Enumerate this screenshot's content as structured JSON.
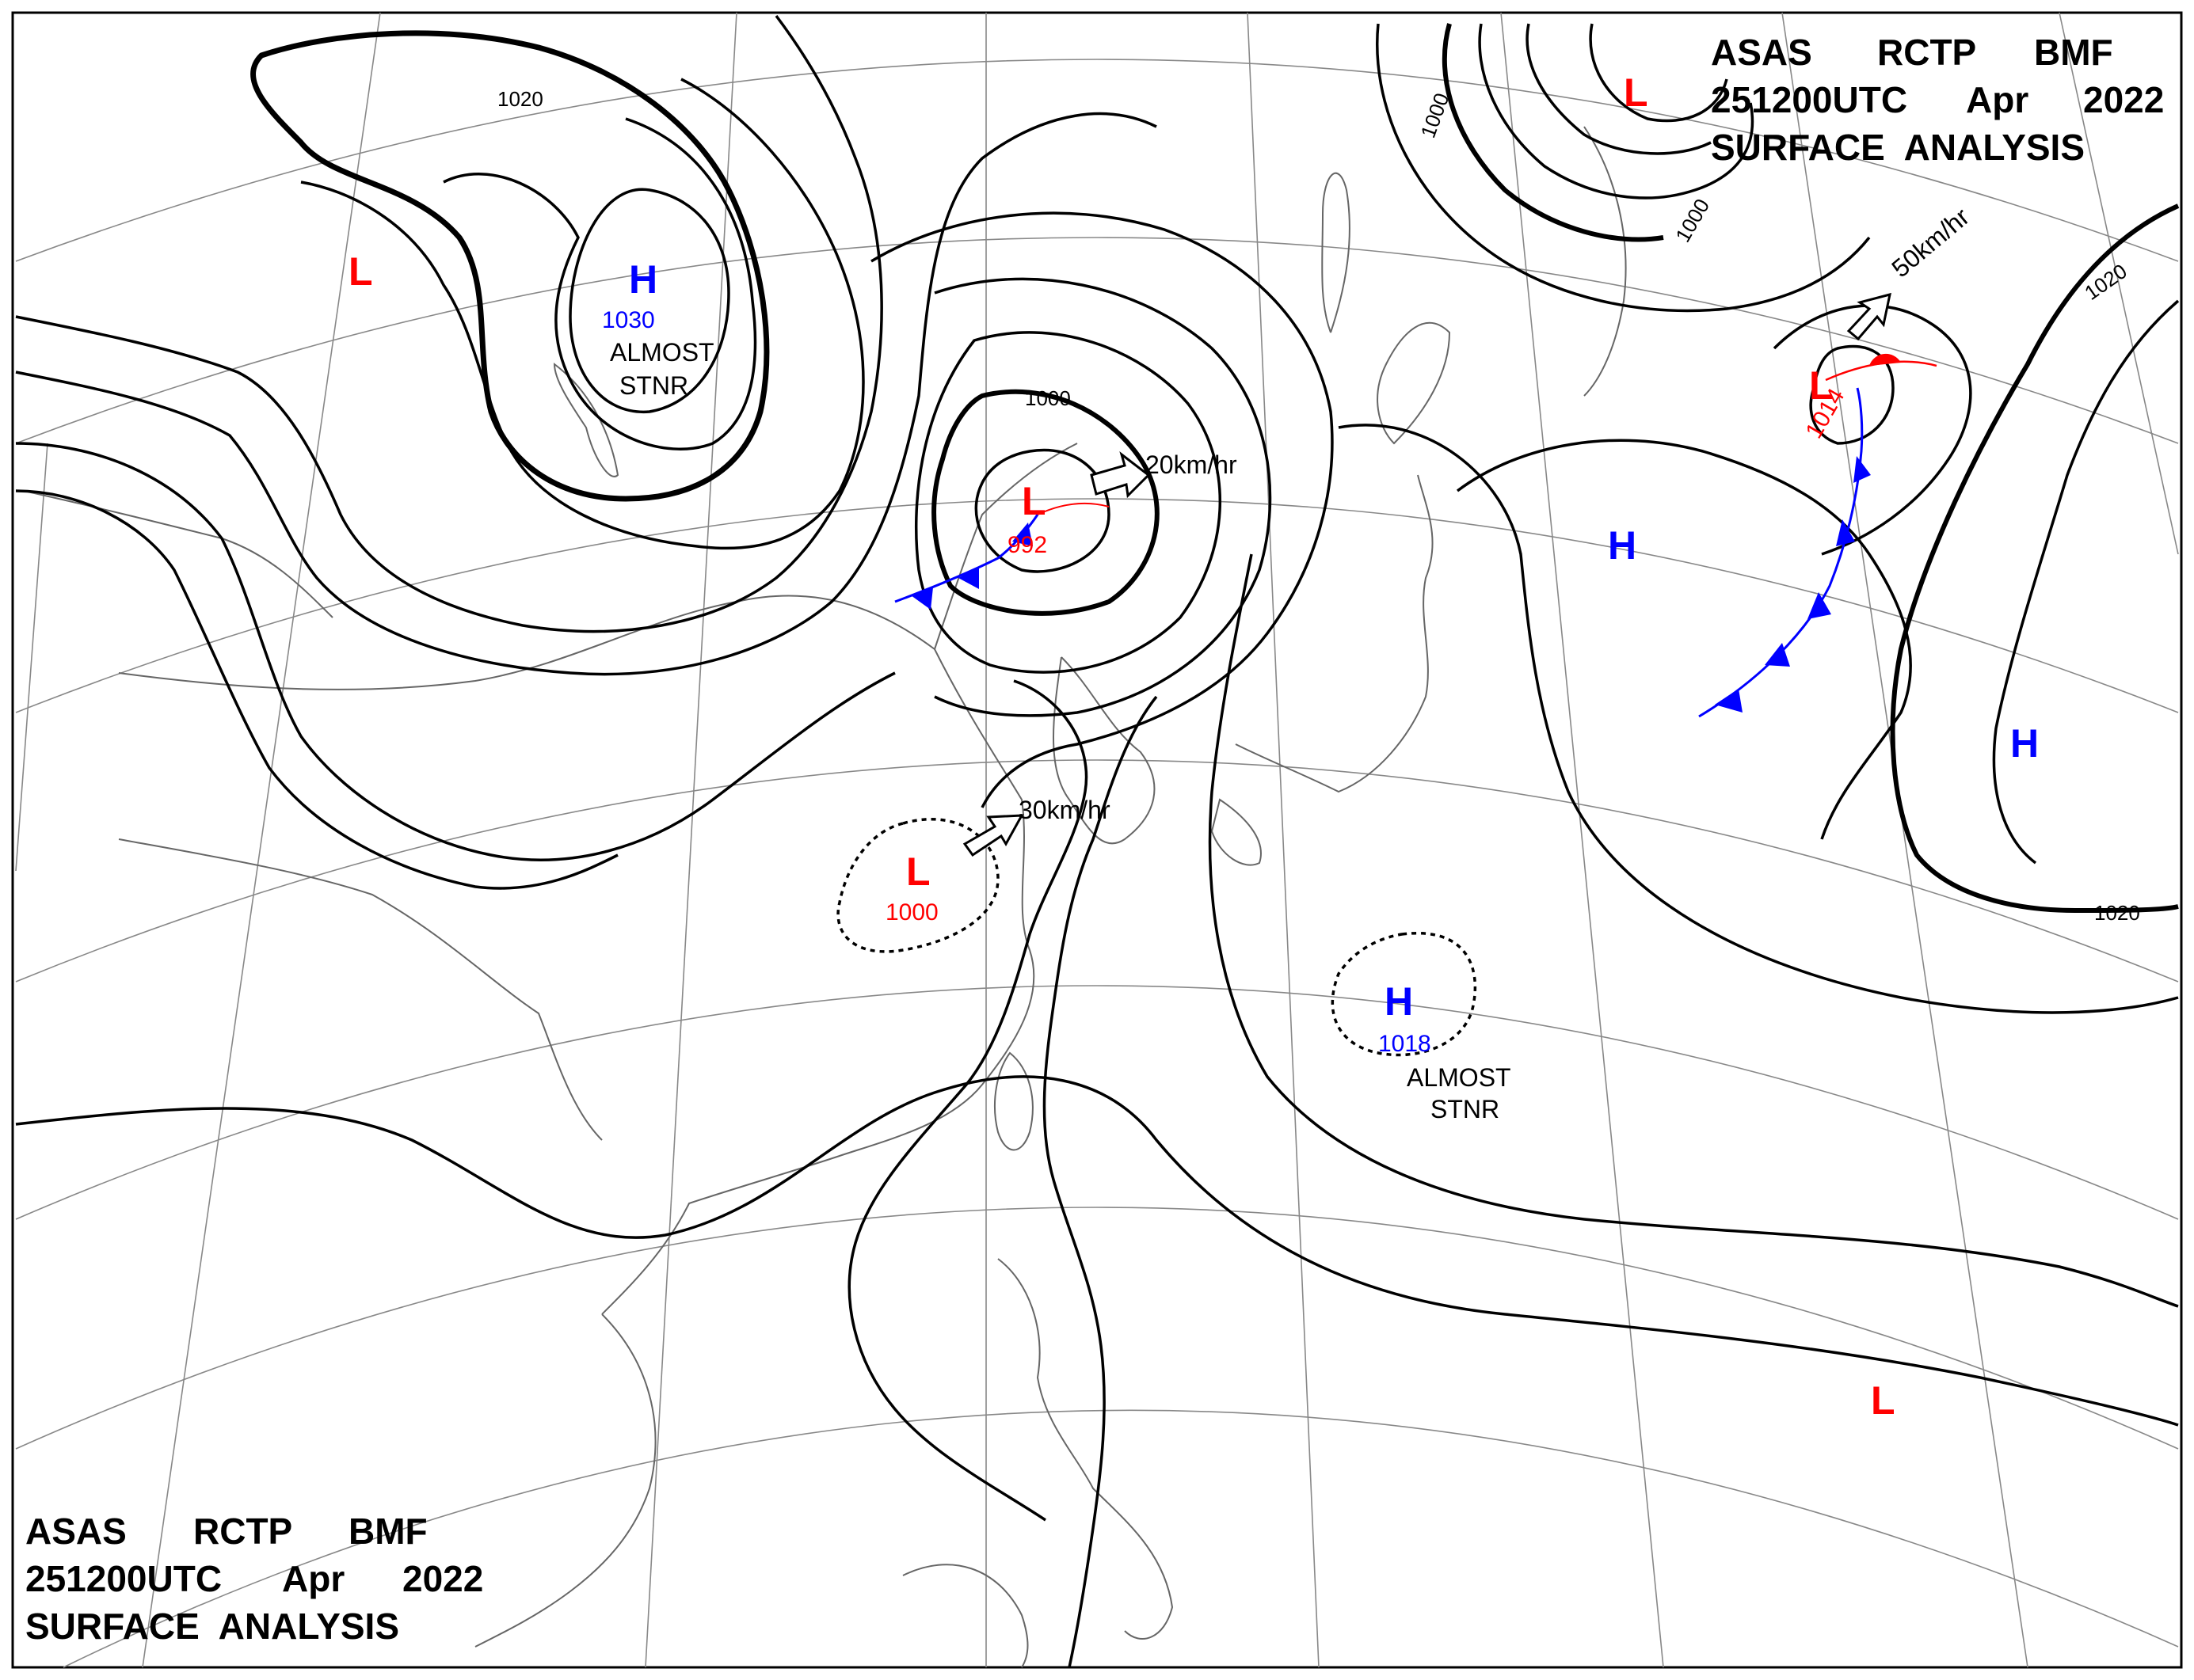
{
  "header_top_right": {
    "line1": [
      "ASAS",
      "RCTP",
      "BMF"
    ],
    "line2": [
      "251200UTC",
      "Apr",
      "2022"
    ],
    "line3": "SURFACE  ANALYSIS"
  },
  "header_bottom_left": {
    "line1": [
      "ASAS",
      "RCTP",
      "BMF"
    ],
    "line2": [
      "251200UTC",
      "Apr",
      "2022"
    ],
    "line3": "SURFACE  ANALYSIS"
  },
  "colors": {
    "high": "#0000ff",
    "low": "#ff0000",
    "cold_front": "#0000ff",
    "warm_front": "#ff0000",
    "isobar": "#000000",
    "geography": "#666666"
  },
  "pressure_systems": [
    {
      "id": "h-mongolia",
      "type": "H",
      "value": "1030",
      "note": [
        "ALMOST",
        "STNR"
      ]
    },
    {
      "id": "l-westsiberia",
      "type": "L",
      "value": ""
    },
    {
      "id": "l-manchuria",
      "type": "L",
      "value": "992",
      "movement": "20km/hr"
    },
    {
      "id": "l-china",
      "type": "L",
      "value": "1000",
      "movement": "30km/hr"
    },
    {
      "id": "l-okhotsk",
      "type": "L",
      "value": ""
    },
    {
      "id": "l-kuril",
      "type": "L",
      "value": "1014",
      "movement": "50km/hr"
    },
    {
      "id": "h-japan-east",
      "type": "H",
      "value": ""
    },
    {
      "id": "h-pacific-east",
      "type": "H",
      "value": ""
    },
    {
      "id": "h-pacific-south",
      "type": "H",
      "value": "1018",
      "note": [
        "ALMOST",
        "STNR"
      ]
    },
    {
      "id": "l-pacific-southeast",
      "type": "L",
      "value": ""
    }
  ],
  "isobar_labels": [
    "1020",
    "1000",
    "1000",
    "1000",
    "1020",
    "1020"
  ],
  "map_background": "#ffffff"
}
